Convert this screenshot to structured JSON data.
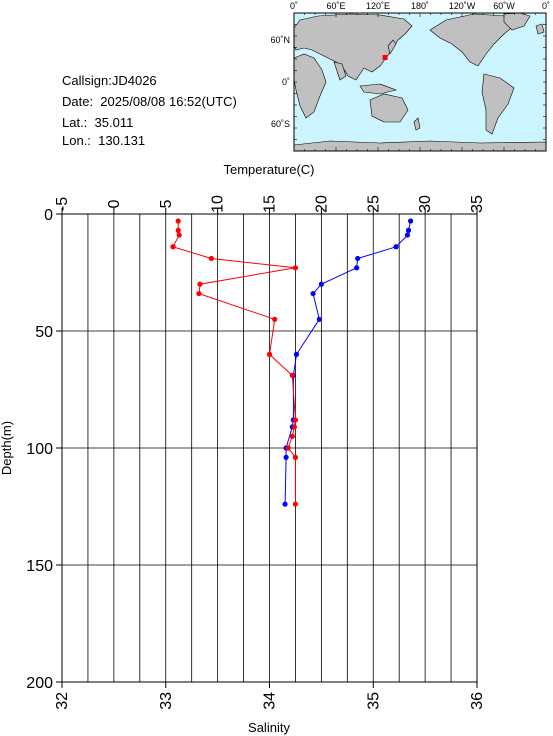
{
  "info": {
    "callsign": "Callsign:JD4026",
    "date": "Date:  2025/08/08 16:52(UTC)",
    "lat": "Lat.:  35.011",
    "lon": "Lon.:  130.131"
  },
  "map": {
    "lon_labels": [
      "0˚",
      "60˚E",
      "120˚E",
      "180˚",
      "120˚W",
      "60˚W",
      "0˚"
    ],
    "lat_labels": [
      "60˚N",
      "0˚",
      "60˚S"
    ],
    "ocean_color": "#ccf5ff",
    "land_color": "#c0c0c0",
    "marker": {
      "lon": 130.131,
      "lat": 35.011,
      "color": "#ff0000"
    }
  },
  "chart_data": {
    "type": "line",
    "title": "",
    "top_axis": {
      "label": "Temperature(C)",
      "range": [
        -5,
        35
      ],
      "ticks": [
        -5,
        0,
        5,
        10,
        15,
        20,
        25,
        30,
        35
      ]
    },
    "bottom_axis": {
      "label": "Salinity",
      "range": [
        32,
        36
      ],
      "ticks": [
        32,
        33,
        34,
        35,
        36
      ]
    },
    "y_axis": {
      "label": "Depth(m)",
      "range": [
        0,
        200
      ],
      "inverted": true,
      "ticks": [
        0,
        50,
        100,
        150,
        200
      ]
    },
    "grid": true,
    "series": [
      {
        "axis": "temperature",
        "color": "#0000ff",
        "points": [
          [
            28.6,
            3
          ],
          [
            28.4,
            7
          ],
          [
            28.3,
            9
          ],
          [
            27.2,
            14
          ],
          [
            23.5,
            19
          ],
          [
            23.4,
            23
          ],
          [
            20.0,
            30
          ],
          [
            19.2,
            34
          ],
          [
            19.8,
            45
          ],
          [
            17.6,
            60
          ],
          [
            17.3,
            69
          ],
          [
            17.3,
            88
          ],
          [
            17.2,
            91
          ],
          [
            16.6,
            100
          ],
          [
            16.6,
            104
          ],
          [
            16.5,
            124
          ]
        ]
      },
      {
        "axis": "salinity",
        "color": "#ff0000",
        "points": [
          [
            33.12,
            3
          ],
          [
            33.12,
            7
          ],
          [
            33.13,
            9
          ],
          [
            33.07,
            14
          ],
          [
            33.44,
            19
          ],
          [
            34.25,
            23
          ],
          [
            33.33,
            30
          ],
          [
            33.32,
            34
          ],
          [
            34.05,
            45
          ],
          [
            34.0,
            60
          ],
          [
            34.22,
            69
          ],
          [
            34.25,
            88
          ],
          [
            34.24,
            91
          ],
          [
            34.22,
            95
          ],
          [
            34.18,
            100
          ],
          [
            34.25,
            104
          ],
          [
            34.25,
            124
          ]
        ]
      }
    ]
  }
}
